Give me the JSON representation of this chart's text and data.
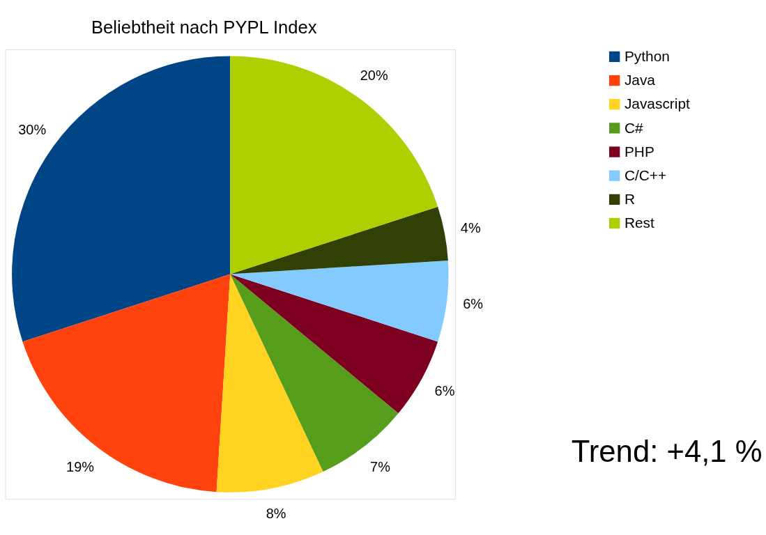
{
  "chart_data": {
    "type": "pie",
    "title": "Beliebtheit nach PYPL Index",
    "categories": [
      "Python",
      "Java",
      "Javascript",
      "C#",
      "PHP",
      "C/C++",
      "R",
      "Rest"
    ],
    "values": [
      30,
      19,
      8,
      7,
      6,
      6,
      4,
      20
    ],
    "colors": [
      "#004586",
      "#ff420e",
      "#ffd320",
      "#579d1c",
      "#7e0021",
      "#83caff",
      "#314004",
      "#aecf00"
    ],
    "value_labels": [
      "30%",
      "19%",
      "8%",
      "7%",
      "6%",
      "6%",
      "4%",
      "20%"
    ],
    "legend": "right",
    "annotations": [
      "Trend: +4,1 %"
    ]
  }
}
